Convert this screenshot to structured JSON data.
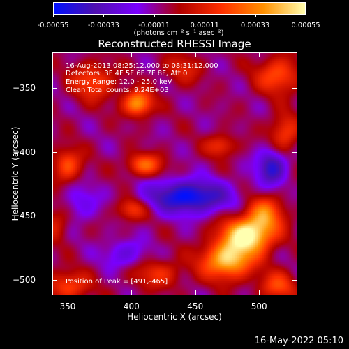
{
  "chart_data": {
    "type": "heatmap",
    "title": "Reconstructed RHESSI Image",
    "xlabel": "Heliocentric X (arcsec)",
    "ylabel": "Heliocentric Y (arcsec)",
    "xlim": [
      338,
      530
    ],
    "ylim": [
      -512,
      -322
    ],
    "x_ticks": [
      350,
      400,
      450,
      500
    ],
    "y_ticks": [
      -350,
      -400,
      -450,
      -500
    ],
    "colorbar": {
      "range": [
        -0.00055,
        0.00055
      ],
      "tick_labels": [
        "-0.00055",
        "-0.00033",
        "-0.00011",
        "0.00011",
        "0.00033",
        "0.00055"
      ],
      "units": "(photons cm⁻² s⁻¹ asec⁻²)",
      "colormap": [
        "#0010ff",
        "#5010b0",
        "#7a00ff",
        "#b00000",
        "#ff3000",
        "#ff9000",
        "#ffffb0"
      ]
    },
    "info_lines": [
      "16-Aug-2013 08:25:12.000 to 08:31:12.000",
      "Detectors: 3F 4F 5F 6F 7F 8F, Att 0",
      "Energy Range: 12.0 - 25.0 keV",
      "Clean     Total counts: 9.24E+03"
    ],
    "peak_text": "Position of Peak = [491,-465]",
    "peak": {
      "x": 491,
      "y": -465
    },
    "sources": [
      {
        "x": 491,
        "y": -465,
        "amp": 1.0,
        "sx": 14,
        "sy": 10
      },
      {
        "x": 475,
        "y": -485,
        "amp": 0.85,
        "sx": 14,
        "sy": 10
      },
      {
        "x": 505,
        "y": -448,
        "amp": 0.55,
        "sx": 10,
        "sy": 10
      },
      {
        "x": 405,
        "y": -362,
        "amp": 0.75,
        "sx": 8,
        "sy": 7
      },
      {
        "x": 350,
        "y": -410,
        "amp": 0.5,
        "sx": 8,
        "sy": 9
      },
      {
        "x": 410,
        "y": -410,
        "amp": 0.55,
        "sx": 10,
        "sy": 6
      },
      {
        "x": 370,
        "y": -345,
        "amp": 0.45,
        "sx": 12,
        "sy": 10
      },
      {
        "x": 515,
        "y": -340,
        "amp": 0.5,
        "sx": 12,
        "sy": 10
      },
      {
        "x": 520,
        "y": -385,
        "amp": 0.45,
        "sx": 8,
        "sy": 10
      },
      {
        "x": 400,
        "y": -445,
        "amp": 0.45,
        "sx": 8,
        "sy": 6
      },
      {
        "x": 350,
        "y": -505,
        "amp": 0.45,
        "sx": 12,
        "sy": 8
      },
      {
        "x": 515,
        "y": -505,
        "amp": 0.45,
        "sx": 10,
        "sy": 8
      },
      {
        "x": 470,
        "y": -395,
        "amp": 0.4,
        "sx": 8,
        "sy": 6
      },
      {
        "x": 420,
        "y": -495,
        "amp": 0.35,
        "sx": 14,
        "sy": 8
      },
      {
        "x": 440,
        "y": -335,
        "amp": 0.3,
        "sx": 10,
        "sy": 8
      },
      {
        "x": 340,
        "y": -455,
        "amp": 0.3,
        "sx": 8,
        "sy": 10
      },
      {
        "x": 445,
        "y": -435,
        "amp": -0.75,
        "sx": 22,
        "sy": 9
      },
      {
        "x": 510,
        "y": -412,
        "amp": -0.6,
        "sx": 8,
        "sy": 10
      },
      {
        "x": 395,
        "y": -480,
        "amp": -0.3,
        "sx": 12,
        "sy": 8
      },
      {
        "x": 360,
        "y": -440,
        "amp": -0.25,
        "sx": 10,
        "sy": 10
      }
    ]
  },
  "footer": {
    "date": "16-May-2022 05:10"
  }
}
